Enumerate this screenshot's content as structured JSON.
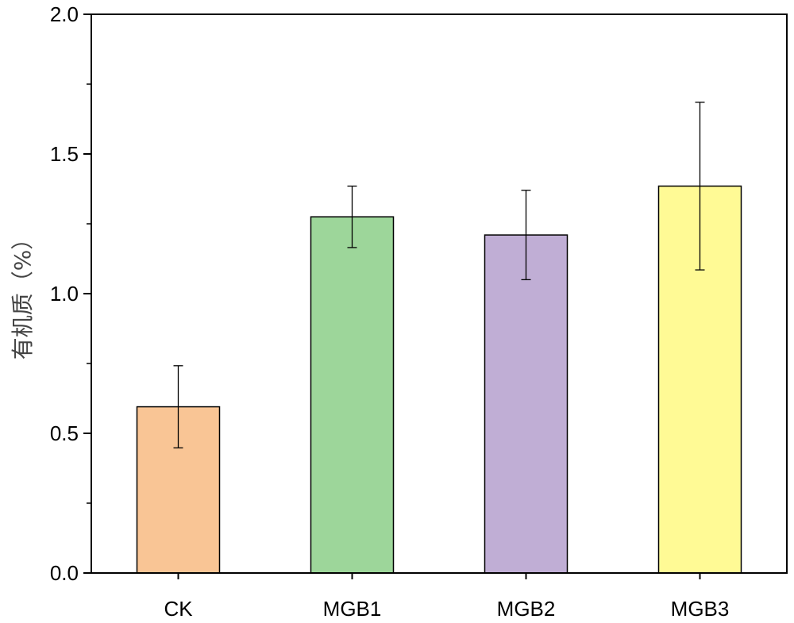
{
  "chart_data": {
    "type": "bar",
    "title": "",
    "xlabel": "",
    "ylabel": "有机质（%）",
    "categories": [
      "CK",
      "MGB1",
      "MGB2",
      "MGB3"
    ],
    "values": [
      0.595,
      1.275,
      1.21,
      1.385
    ],
    "errors": [
      0.147,
      0.11,
      0.16,
      0.3
    ],
    "colors": [
      "#F9C595",
      "#9DD69A",
      "#C0AED5",
      "#FFFA95"
    ],
    "ylim": [
      0,
      2.0
    ],
    "yticks": [
      "0.0",
      "0.5",
      "1.0",
      "1.5",
      "2.0"
    ],
    "grid": false,
    "legend": "none"
  }
}
